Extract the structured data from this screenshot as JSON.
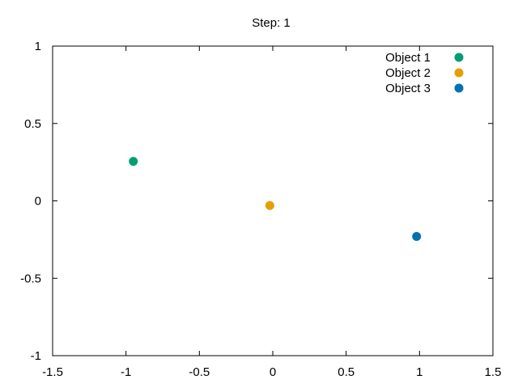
{
  "chart_data": {
    "type": "scatter",
    "title": "Step: 1",
    "xlabel": "",
    "ylabel": "",
    "xlim": [
      -1.5,
      1.5
    ],
    "ylim": [
      -1,
      1
    ],
    "x_ticks": [
      -1.5,
      -1,
      -0.5,
      0,
      0.5,
      1,
      1.5
    ],
    "x_tick_labels": [
      "-1.5",
      "-1",
      "-0.5",
      "0",
      "0.5",
      "1",
      "1.5"
    ],
    "y_ticks": [
      -1,
      -0.5,
      0,
      0.5,
      1
    ],
    "y_tick_labels": [
      "-1",
      "-0.5",
      "0",
      "0.5",
      "1"
    ],
    "grid": false,
    "legend_position": "top-right",
    "series": [
      {
        "name": "Object 1",
        "color": "#009e73",
        "points": [
          {
            "x": -0.95,
            "y": 0.255
          }
        ]
      },
      {
        "name": "Object 2",
        "color": "#e69f00",
        "points": [
          {
            "x": -0.02,
            "y": -0.03
          }
        ]
      },
      {
        "name": "Object 3",
        "color": "#0072b2",
        "points": [
          {
            "x": 0.98,
            "y": -0.23
          }
        ]
      }
    ]
  }
}
